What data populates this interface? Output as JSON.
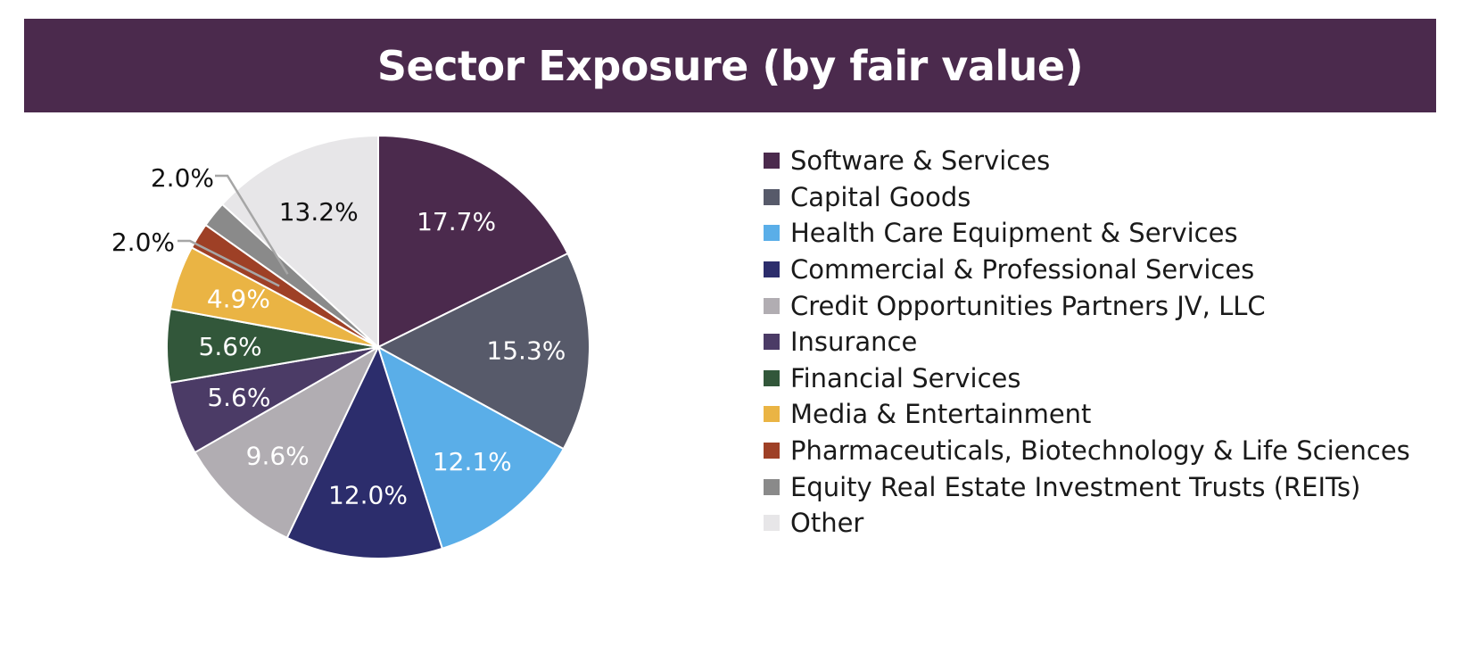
{
  "chart_data": {
    "type": "pie",
    "title": "Sector Exposure (by fair value)",
    "legend_position": "right",
    "start_angle": "12 o'clock",
    "direction": "clockwise",
    "slices": [
      {
        "name": "Software & Services",
        "value": 17.7,
        "label": "17.7%",
        "color": "#4b2a4d",
        "label_color": "#ffffff"
      },
      {
        "name": "Capital Goods",
        "value": 15.3,
        "label": "15.3%",
        "color": "#575a6a",
        "label_color": "#ffffff"
      },
      {
        "name": "Health Care Equipment & Services",
        "value": 12.1,
        "label": "12.1%",
        "color": "#5aaee8",
        "label_color": "#ffffff"
      },
      {
        "name": "Commercial & Professional Services",
        "value": 12.0,
        "label": "12.0%",
        "color": "#2c2d6c",
        "label_color": "#ffffff"
      },
      {
        "name": "Credit Opportunities Partners JV, LLC",
        "value": 9.6,
        "label": "9.6%",
        "color": "#b1adb2",
        "label_color": "#ffffff"
      },
      {
        "name": "Insurance",
        "value": 5.6,
        "label": "5.6%",
        "color": "#4b3b66",
        "label_color": "#ffffff"
      },
      {
        "name": "Financial Services",
        "value": 5.6,
        "label": "5.6%",
        "color": "#32573a",
        "label_color": "#ffffff"
      },
      {
        "name": "Media & Entertainment",
        "value": 4.9,
        "label": "4.9%",
        "color": "#eab444",
        "label_color": "#ffffff"
      },
      {
        "name": "Pharmaceuticals, Biotechnology & Life Sciences",
        "value": 2.0,
        "label": "2.0%",
        "color": "#9e4026",
        "label_color": "#111111",
        "callout": true
      },
      {
        "name": "Equity Real Estate Investment Trusts (REITs)",
        "value": 2.0,
        "label": "2.0%",
        "color": "#8a8a8a",
        "label_color": "#111111",
        "callout": true
      },
      {
        "name": "Other",
        "value": 13.2,
        "label": "13.2%",
        "color": "#e7e6e8",
        "label_color": "#111111"
      }
    ]
  }
}
